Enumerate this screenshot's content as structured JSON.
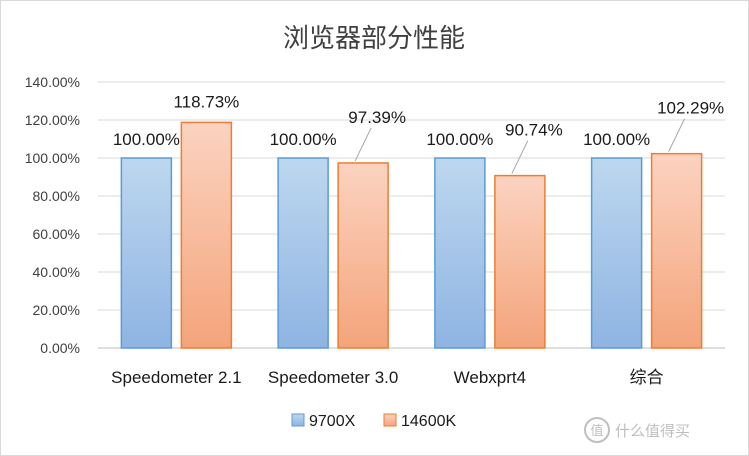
{
  "chart_data": {
    "type": "bar",
    "title": "浏览器部分性能",
    "categories": [
      "Speedometer 2.1",
      "Speedometer 3.0",
      "Webxprt4",
      "综合"
    ],
    "series": [
      {
        "name": "9700X",
        "values": [
          100.0,
          100.0,
          100.0,
          100.0
        ],
        "labels": [
          "100.00%",
          "100.00%",
          "100.00%",
          "100.00%"
        ],
        "color": "#9dc3e6",
        "border": "#5b9bd5"
      },
      {
        "name": "14600K",
        "values": [
          118.73,
          97.39,
          90.74,
          102.29
        ],
        "labels": [
          "118.73%",
          "97.39%",
          "90.74%",
          "102.29%"
        ],
        "color": "#f8b99a",
        "border": "#ed7d31"
      }
    ],
    "xlabel": "",
    "ylabel": "",
    "ylim": [
      0,
      140
    ],
    "y_ticks": [
      "0.00%",
      "20.00%",
      "40.00%",
      "60.00%",
      "80.00%",
      "100.00%",
      "120.00%",
      "140.00%"
    ],
    "grid": true,
    "legend_position": "bottom"
  },
  "watermark": {
    "text": "什么值得买",
    "icon": "smzdm-logo-icon"
  }
}
